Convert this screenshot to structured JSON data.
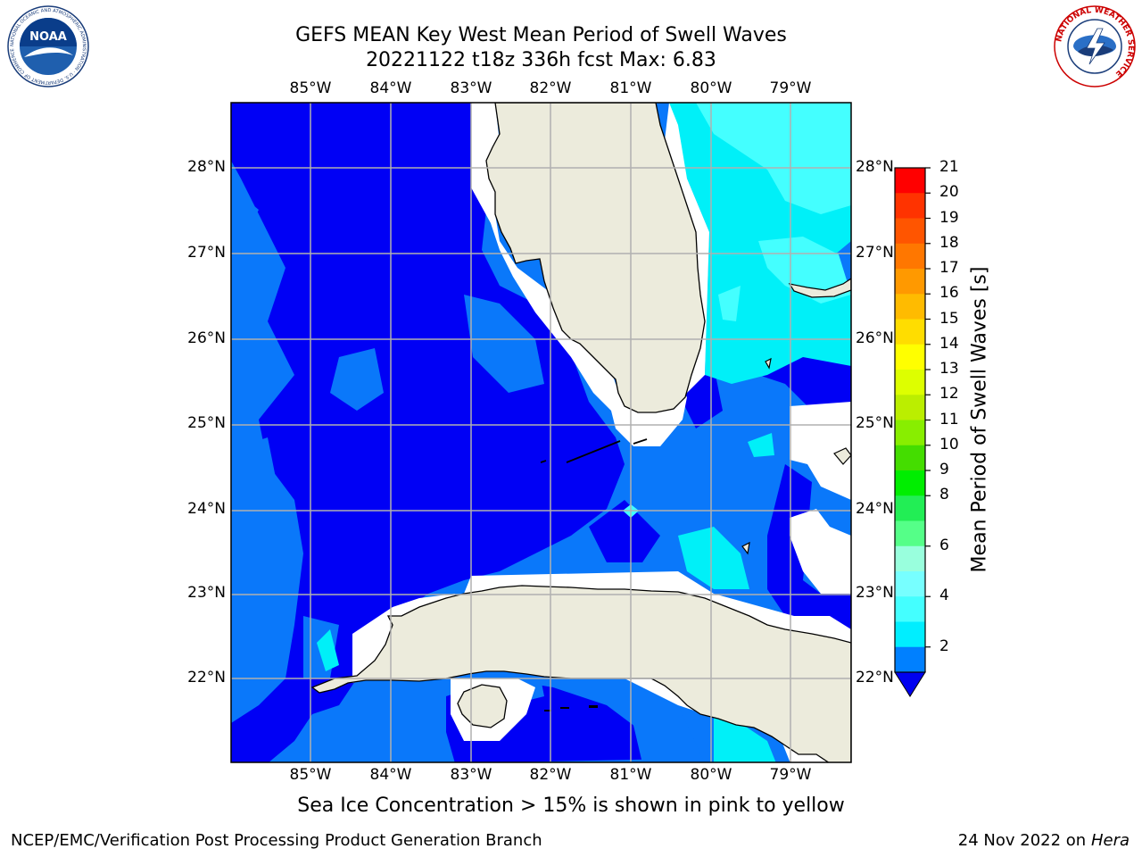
{
  "header": {
    "title_line1": "GEFS MEAN Key West Mean Period of Swell Waves",
    "title_line2": "20221122 t18z 336h fcst   Max: 6.83"
  },
  "logos": {
    "left": {
      "text": "NOAA",
      "ring_text": "NATIONAL OCEANIC AND ATMOSPHERIC ADMINISTRATION · U.S. DEPARTMENT OF COMMERCE"
    },
    "right": {
      "ring_text": "NATIONAL WEATHER SERVICE"
    }
  },
  "map": {
    "lon_labels": [
      "85°W",
      "84°W",
      "83°W",
      "82°W",
      "81°W",
      "80°W",
      "79°W"
    ],
    "lat_labels": [
      "28°N",
      "27°N",
      "26°N",
      "25°N",
      "24°N",
      "23°N",
      "22°N"
    ],
    "colors": {
      "land": "#ecebdc",
      "deep_blue": "#0000f5",
      "mid_blue": "#0a78fa",
      "cyan": "#00f0f8",
      "light_cyan": "#44ffff",
      "grid": "#b0b0b0"
    }
  },
  "colorbar": {
    "label": "Mean Period of Swell Waves [s]",
    "ticks": [
      "21",
      "20",
      "19",
      "18",
      "17",
      "16",
      "15",
      "14",
      "13",
      "12",
      "11",
      "10",
      "9",
      "8",
      "6",
      "4",
      "2"
    ],
    "band_colors": [
      "#ff0000",
      "#ff3300",
      "#ff5500",
      "#ff7700",
      "#ff9900",
      "#ffbb00",
      "#ffdd00",
      "#ffff00",
      "#ddff00",
      "#bbee00",
      "#88ee00",
      "#44dd00",
      "#00ee00",
      "#22ee55",
      "#55ff88",
      "#99ffdd",
      "#77ffff",
      "#44ffff",
      "#00eeff",
      "#0080ff"
    ],
    "extend_color": "#0000f0"
  },
  "note": "Sea Ice Concentration > 15% is shown in pink to yellow",
  "footer": {
    "left": "NCEP/EMC/Verification Post Processing Product Generation Branch",
    "date": "24 Nov 2022 on",
    "machine": "Hera"
  }
}
